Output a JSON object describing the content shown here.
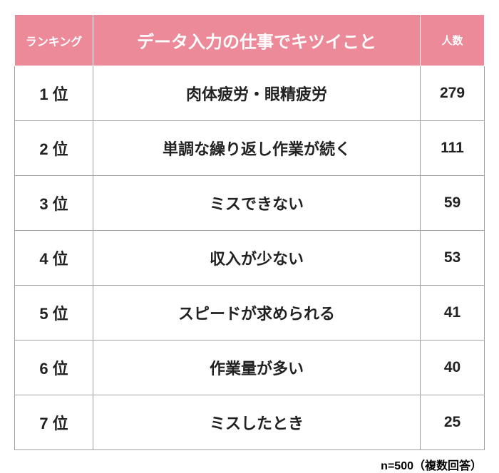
{
  "table": {
    "type": "table",
    "header_bg_color": "#ec8a99",
    "header_text_color": "#ffffff",
    "cell_text_color": "#222222",
    "border_color": "#a0a0a0",
    "border_width": 1,
    "header_border_color": "#ffffff",
    "columns": [
      {
        "key": "rank",
        "label": "ランキング",
        "width": 110,
        "fontsize": 16
      },
      {
        "key": "reason",
        "label": "データ入力の仕事でキツイこと",
        "fontsize": 24
      },
      {
        "key": "count",
        "label": "人数",
        "width": 90,
        "fontsize": 15
      }
    ],
    "rows": [
      {
        "rank": "1 位",
        "reason": "肉体疲労・眼精疲労",
        "count": "279"
      },
      {
        "rank": "2 位",
        "reason": "単調な繰り返し作業が続く",
        "count": "111"
      },
      {
        "rank": "3 位",
        "reason": "ミスできない",
        "count": "59"
      },
      {
        "rank": "4 位",
        "reason": "収入が少ない",
        "count": "53"
      },
      {
        "rank": "5 位",
        "reason": "スピードが求められる",
        "count": "41"
      },
      {
        "rank": "6 位",
        "reason": "作業量が多い",
        "count": "40"
      },
      {
        "rank": "7 位",
        "reason": "ミスしたとき",
        "count": "25"
      }
    ]
  },
  "footnote": "n=500（複数回答）"
}
